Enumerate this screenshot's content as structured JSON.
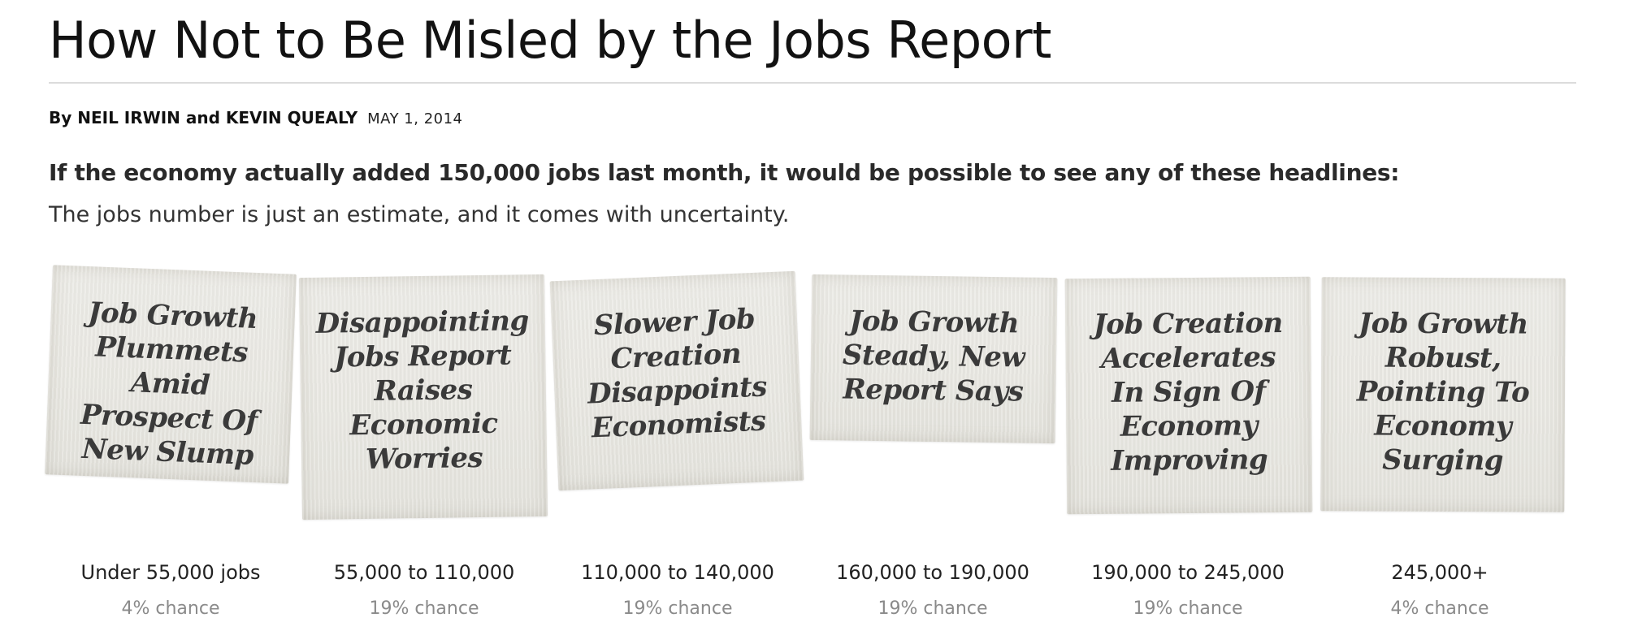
{
  "article": {
    "headline": "How Not to Be Misled by the Jobs Report",
    "byline": "By NEIL IRWIN and KEVIN QUEALY",
    "date": "MAY 1, 2014",
    "lede": "If the economy actually added 150,000 jobs last month, it would be possible to see any of these headlines:",
    "dek": "The jobs number is just an estimate, and it comes with uncertainty."
  },
  "clippings": [
    {
      "headline": "Job Growth Plummets Amid Prospect Of New Slump",
      "range": "Under 55,000 jobs",
      "chance": "4% chance",
      "chance_percent": 4
    },
    {
      "headline": "Disappointing Jobs Report Raises Economic Worries",
      "range": "55,000 to 110,000",
      "chance": "19% chance",
      "chance_percent": 19
    },
    {
      "headline": "Slower Job Creation Disappoints Economists",
      "range": "110,000 to 140,000",
      "chance": "19% chance",
      "chance_percent": 19
    },
    {
      "headline": "Job Growth Steady, New Report Says",
      "range": "160,000 to 190,000",
      "chance": "19% chance",
      "chance_percent": 19
    },
    {
      "headline": "Job Creation Accelerates In Sign Of Economy Improving",
      "range": "190,000 to 245,000",
      "chance": "19% chance",
      "chance_percent": 19
    },
    {
      "headline": "Job Growth Robust, Pointing To Economy Surging",
      "range": "245,000+",
      "chance": "4% chance",
      "chance_percent": 4
    }
  ]
}
